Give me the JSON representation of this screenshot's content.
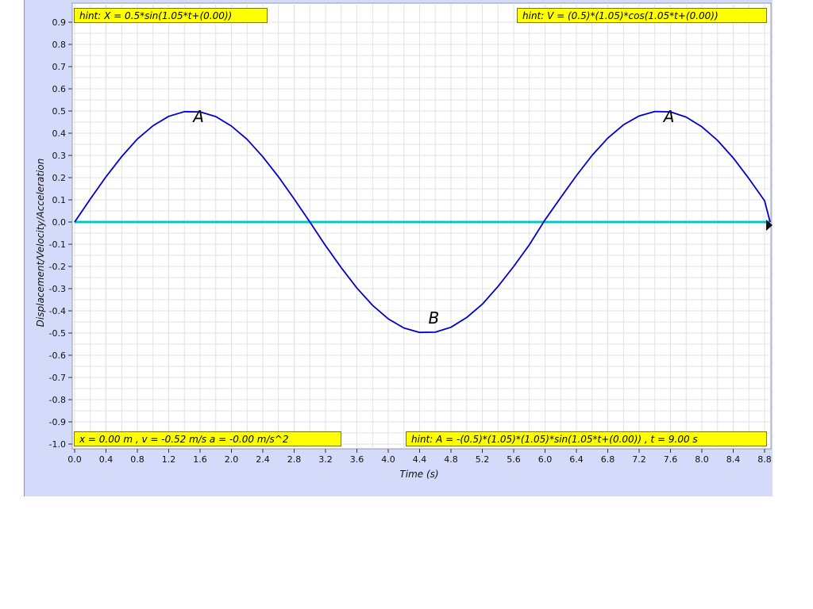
{
  "hints": {
    "top_left": "hint: X = 0.5*sin(1.05*t+(0.00))",
    "top_right": "hint: V = (0.5)*(1.05)*cos(1.05*t+(0.00))",
    "bottom_left": "x = 0.00 m , v = -0.52 m/s a = -0.00 m/s^2",
    "bottom_right": "hint: A = -(0.5)*(1.05)*(1.05)*sin(1.05*t+(0.00)) , t = 9.00 s"
  },
  "chart_data": {
    "type": "line",
    "title": "",
    "xlabel": "Time (s)",
    "ylabel": "Displacement/Velocity/Acceleration",
    "xlim": [
      0,
      8.8
    ],
    "ylim": [
      -1.0,
      0.9
    ],
    "grid": true,
    "x_ticks": [
      "0.0",
      "0.4",
      "0.8",
      "1.2",
      "1.6",
      "2.0",
      "2.4",
      "2.8",
      "3.2",
      "3.6",
      "4.0",
      "4.4",
      "4.8",
      "5.2",
      "5.6",
      "6.0",
      "6.4",
      "6.8",
      "7.2",
      "7.6",
      "8.0",
      "8.4",
      "8.8"
    ],
    "y_ticks": [
      "0.9",
      "0.8",
      "0.7",
      "0.6",
      "0.5",
      "0.4",
      "0.3",
      "0.2",
      "0.1",
      "0.0",
      "-0.1",
      "-0.2",
      "-0.3",
      "-0.4",
      "-0.5",
      "-0.6",
      "-0.7",
      "-0.8",
      "-0.9",
      "-1.0"
    ],
    "series": [
      {
        "color": "#0000cc",
        "function": "0.5*sin(1.05*t+(0.00))",
        "x": [
          0.0,
          0.2,
          0.4,
          0.6,
          0.8,
          1.0,
          1.2,
          1.4,
          1.6,
          1.8,
          2.0,
          2.2,
          2.4,
          2.6,
          2.8,
          3.0,
          3.2,
          3.4,
          3.6,
          3.8,
          4.0,
          4.2,
          4.4,
          4.6,
          4.8,
          5.0,
          5.2,
          5.4,
          5.6,
          5.8,
          6.0,
          6.2,
          6.4,
          6.6,
          6.8,
          7.0,
          7.2,
          7.4,
          7.6,
          7.8,
          8.0,
          8.2,
          8.4,
          8.6,
          8.8,
          9.0
        ],
        "y": [
          0.0,
          0.104,
          0.204,
          0.295,
          0.374,
          0.434,
          0.476,
          0.497,
          0.496,
          0.475,
          0.432,
          0.372,
          0.294,
          0.204,
          0.104,
          0.0,
          -0.106,
          -0.205,
          -0.297,
          -0.375,
          -0.436,
          -0.477,
          -0.497,
          -0.496,
          -0.474,
          -0.43,
          -0.37,
          -0.29,
          -0.2,
          -0.102,
          0.01,
          0.11,
          0.209,
          0.3,
          0.378,
          0.438,
          0.478,
          0.498,
          0.496,
          0.473,
          0.429,
          0.368,
          0.289,
          0.196,
          0.096,
          0.0
        ]
      },
      {
        "color": "#00c8c8",
        "x": [
          0.0,
          8.8
        ],
        "y": [
          0.0,
          0.0
        ]
      }
    ],
    "annotations": [
      {
        "text": "A",
        "x": 1.5,
        "y": 0.5
      },
      {
        "text": "B",
        "x": 4.5,
        "y": -0.5
      },
      {
        "text": "A",
        "x": 7.5,
        "y": 0.5
      }
    ]
  }
}
